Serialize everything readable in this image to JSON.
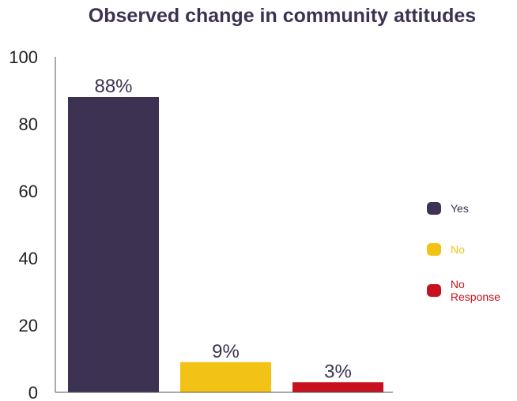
{
  "chart_data": {
    "type": "bar",
    "title": "Observed change in community attitudes",
    "categories": [
      "Yes",
      "No",
      "No Response"
    ],
    "values": [
      88,
      9,
      3
    ],
    "data_labels": [
      "88%",
      "9%",
      "3%"
    ],
    "colors": [
      "#3d3252",
      "#f2c314",
      "#c8101e"
    ],
    "legend_text_colors": [
      "#3d3252",
      "#f2c314",
      "#c8101e"
    ],
    "ylim": [
      0,
      100
    ],
    "yticks": [
      0,
      20,
      40,
      60,
      80,
      100
    ],
    "ytick_labels": [
      "0",
      "20",
      "40",
      "60",
      "80",
      "100"
    ],
    "xlabel": "",
    "ylabel": "",
    "grid": false,
    "legend_position": "right"
  }
}
